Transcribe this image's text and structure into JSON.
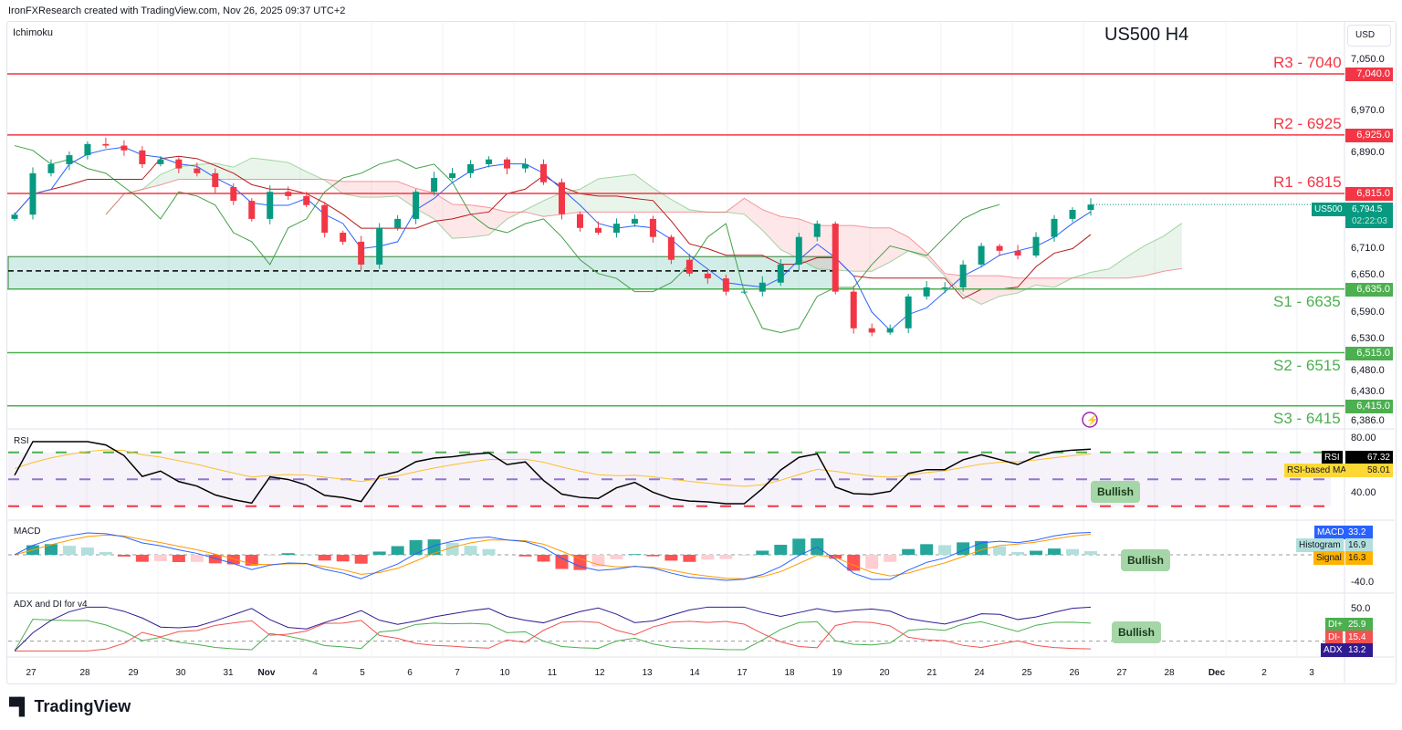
{
  "header": "IronFXResearch created with TradingView.com, Nov 26, 2025 09:37 UTC+2",
  "indicator_main": "Ichimoku",
  "title": "US500 H4",
  "currency": "USD",
  "symbol": "US500",
  "last_price": "6,794.5",
  "countdown": "02:22:03",
  "colors": {
    "up": "#089981",
    "down": "#f23645",
    "resistance": "#f23645",
    "support": "#4caf50"
  },
  "levels": [
    {
      "name": "R3 - 7040",
      "tag": "7,040.0",
      "value": 7040,
      "kind": "resistance"
    },
    {
      "name": "R2 - 6925",
      "tag": "6,925.0",
      "value": 6925,
      "kind": "resistance"
    },
    {
      "name": "R1 - 6815",
      "tag": "6,815.0",
      "value": 6815,
      "kind": "resistance"
    },
    {
      "name": "S1 - 6635",
      "tag": "6,635.0",
      "value": 6635,
      "kind": "support"
    },
    {
      "name": "S2 - 6515",
      "tag": "6,515.0",
      "value": 6515,
      "kind": "support"
    },
    {
      "name": "S3 - 6415",
      "tag": "6,415.0",
      "value": 6415,
      "kind": "support"
    }
  ],
  "price_ticks": [
    "7,050.0",
    "6,970.0",
    "6,890.0",
    "6,710.0",
    "6,650.0",
    "6,590.0",
    "6,530.0",
    "6,480.0",
    "6,430.0",
    "6,386.0"
  ],
  "rsi": {
    "label": "RSI",
    "value": "67.32",
    "ma_label": "RSI-based MA",
    "ma_value": "58.01",
    "ticks": [
      "80.00",
      "40.00"
    ],
    "callout": "Bullish"
  },
  "macd": {
    "label": "MACD",
    "value": "33.2",
    "hist_label": "Histogram",
    "hist_value": "16.9",
    "signal_label": "Signal",
    "signal_value": "16.3",
    "ticks": [
      "-40.0"
    ],
    "callout": "Bullish"
  },
  "adx": {
    "label": "ADX and DI for v4",
    "diplus_label": "DI+",
    "diplus": "25.9",
    "diminus_label": "DI-",
    "diminus": "15.4",
    "adx_label": "ADX",
    "adx_value": "13.2",
    "ticks": [
      "50.0"
    ],
    "callout": "Bullish"
  },
  "x_ticks": [
    "27",
    "28",
    "29",
    "30",
    "31",
    "Nov",
    "4",
    "5",
    "6",
    "7",
    "10",
    "11",
    "12",
    "13",
    "14",
    "17",
    "18",
    "19",
    "20",
    "21",
    "24",
    "25",
    "26",
    "27",
    "28",
    "Dec",
    "2",
    "3"
  ],
  "brand": "TradingView",
  "chart_data": {
    "type": "candlestick",
    "title": "US500 H4",
    "ylabel": "USD",
    "ylim": [
      6386,
      7060
    ],
    "support_zone": [
      6635,
      6696
    ],
    "zone_midline": 6669,
    "closes": [
      6775,
      6853,
      6870,
      6887,
      6908,
      6905,
      6896,
      6870,
      6879,
      6862,
      6853,
      6827,
      6801,
      6767,
      6818,
      6810,
      6793,
      6741,
      6724,
      6681,
      6750,
      6767,
      6818,
      6844,
      6853,
      6870,
      6879,
      6862,
      6870,
      6836,
      6776,
      6750,
      6741,
      6758,
      6767,
      6733,
      6690,
      6664,
      6655,
      6630,
      6630,
      6647,
      6681,
      6733,
      6758,
      6630,
      6561,
      6553,
      6561,
      6621,
      6638,
      6638,
      6681,
      6716,
      6707,
      6698,
      6733,
      6767,
      6784,
      6794
    ]
  }
}
